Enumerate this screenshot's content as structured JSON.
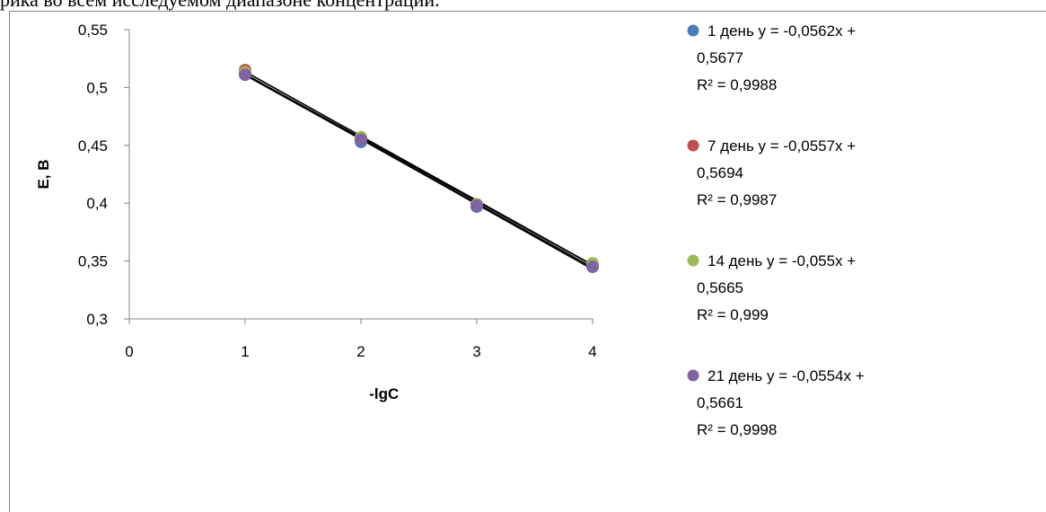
{
  "document": {
    "top_text": "рика во всем исследуемом диапазоне концентраций."
  },
  "chart_data": {
    "type": "scatter",
    "xlabel": "-lgC",
    "ylabel": "E, B",
    "xlim": [
      0,
      4
    ],
    "ylim": [
      0.3,
      0.55
    ],
    "x_ticks": [
      "0",
      "1",
      "2",
      "3",
      "4"
    ],
    "y_ticks": [
      "0,3",
      "0,35",
      "0,4",
      "0,45",
      "0,5",
      "0,55"
    ],
    "grid": false,
    "legend_position": "right",
    "series": [
      {
        "name": "1 день",
        "color": "#4a7ebb",
        "x": [
          1,
          2,
          3,
          4
        ],
        "y": [
          0.512,
          0.453,
          0.397,
          0.346
        ],
        "trendline": {
          "slope": -0.0562,
          "intercept": 0.5677
        },
        "legend_lines": [
          "1 день y = -0,0562x +",
          "0,5677",
          "R² = 0,9988"
        ]
      },
      {
        "name": "7 день",
        "color": "#c0504d",
        "x": [
          1,
          2,
          3,
          4
        ],
        "y": [
          0.515,
          0.456,
          0.399,
          0.347
        ],
        "trendline": {
          "slope": -0.0557,
          "intercept": 0.5694
        },
        "legend_lines": [
          "7 день y = -0,0557x +",
          "0,5694",
          "R² = 0,9987"
        ]
      },
      {
        "name": "14 день",
        "color": "#9bbb59",
        "x": [
          1,
          2,
          3,
          4
        ],
        "y": [
          0.513,
          0.457,
          0.399,
          0.348
        ],
        "trendline": {
          "slope": -0.055,
          "intercept": 0.5665
        },
        "legend_lines": [
          "14 день y = -0,055x +",
          "0,5665",
          "R² = 0,999"
        ]
      },
      {
        "name": "21 день",
        "color": "#8064a2",
        "x": [
          1,
          2,
          3,
          4
        ],
        "y": [
          0.511,
          0.455,
          0.398,
          0.345
        ],
        "trendline": {
          "slope": -0.0554,
          "intercept": 0.5661
        },
        "legend_lines": [
          "21 день y = -0,0554x +",
          "0,5661",
          "R² = 0,9998"
        ]
      }
    ]
  }
}
